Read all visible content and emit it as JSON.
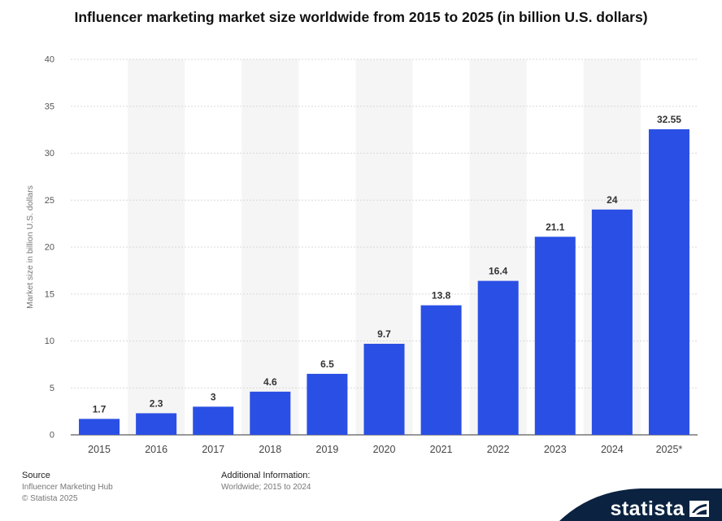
{
  "title": "Influencer marketing market size worldwide from 2015 to 2025 (in billion U.S. dollars)",
  "chart_data": {
    "type": "bar",
    "title": "Influencer marketing market size worldwide from 2015 to 2025 (in billion U.S. dollars)",
    "xlabel": "",
    "ylabel": "Market size in billion U.S. dollars",
    "categories": [
      "2015",
      "2016",
      "2017",
      "2018",
      "2019",
      "2020",
      "2021",
      "2022",
      "2023",
      "2024",
      "2025*"
    ],
    "values": [
      1.7,
      2.3,
      3,
      4.6,
      6.5,
      9.7,
      13.8,
      16.4,
      21.1,
      24,
      32.55
    ],
    "data_labels": [
      "1.7",
      "2.3",
      "3",
      "4.6",
      "6.5",
      "9.7",
      "13.8",
      "16.4",
      "21.1",
      "24",
      "32.55"
    ],
    "ylim": [
      0,
      40
    ],
    "yticks": [
      0,
      5,
      10,
      15,
      20,
      25,
      30,
      35,
      40
    ],
    "grid": true,
    "legend": "none",
    "bar_color": "#2a4fe4",
    "band_color": "#f5f5f5"
  },
  "footer": {
    "source_heading": "Source",
    "source_name": "Influencer Marketing Hub",
    "copyright": "© Statista 2025",
    "info_heading": "Additional Information:",
    "info_text": "Worldwide; 2015 to 2024"
  },
  "brand": {
    "name": "statista",
    "color": "#0b2341",
    "icon": "statista-logo-icon"
  }
}
